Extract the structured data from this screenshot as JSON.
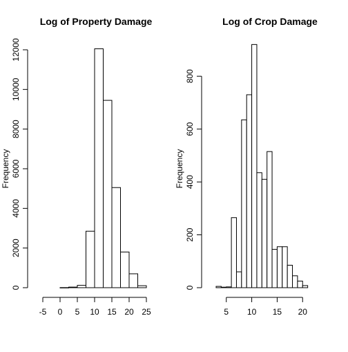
{
  "chart_data": [
    {
      "type": "bar",
      "title": "Log of Property Damage",
      "xlabel": "",
      "ylabel": "Frequency",
      "xlim": [
        -5,
        25
      ],
      "ylim": [
        0,
        12000
      ],
      "xticks": [
        "-5",
        "0",
        "5",
        "10",
        "15",
        "20",
        "25"
      ],
      "yticks": [
        "0",
        "2000",
        "4000",
        "6000",
        "8000",
        "10000",
        "12000"
      ],
      "bins": [
        {
          "x0": 0,
          "x1": 2.5,
          "count": 5
        },
        {
          "x0": 2.5,
          "x1": 5,
          "count": 30
        },
        {
          "x0": 5,
          "x1": 7.5,
          "count": 120
        },
        {
          "x0": 7.5,
          "x1": 10,
          "count": 2850
        },
        {
          "x0": 10,
          "x1": 12.5,
          "count": 12050
        },
        {
          "x0": 12.5,
          "x1": 15,
          "count": 9450
        },
        {
          "x0": 15,
          "x1": 17.5,
          "count": 5050
        },
        {
          "x0": 17.5,
          "x1": 20,
          "count": 1800
        },
        {
          "x0": 20,
          "x1": 22.5,
          "count": 700
        },
        {
          "x0": 22.5,
          "x1": 25,
          "count": 100
        }
      ]
    },
    {
      "type": "bar",
      "title": "Log of Crop Damage",
      "xlabel": "",
      "ylabel": "Frequency",
      "xlim": [
        3,
        22
      ],
      "ylim": [
        0,
        900
      ],
      "xticks": [
        "5",
        "10",
        "15",
        "20"
      ],
      "yticks": [
        "0",
        "200",
        "400",
        "600",
        "800"
      ],
      "bins": [
        {
          "x0": 3,
          "x1": 4,
          "count": 5
        },
        {
          "x0": 4,
          "x1": 5,
          "count": 2
        },
        {
          "x0": 5,
          "x1": 6,
          "count": 3
        },
        {
          "x0": 6,
          "x1": 7,
          "count": 265
        },
        {
          "x0": 7,
          "x1": 8,
          "count": 60
        },
        {
          "x0": 8,
          "x1": 9,
          "count": 635
        },
        {
          "x0": 9,
          "x1": 10,
          "count": 730
        },
        {
          "x0": 10,
          "x1": 11,
          "count": 920
        },
        {
          "x0": 11,
          "x1": 12,
          "count": 435
        },
        {
          "x0": 12,
          "x1": 13,
          "count": 410
        },
        {
          "x0": 13,
          "x1": 14,
          "count": 515
        },
        {
          "x0": 14,
          "x1": 15,
          "count": 145
        },
        {
          "x0": 15,
          "x1": 16,
          "count": 155
        },
        {
          "x0": 16,
          "x1": 17,
          "count": 155
        },
        {
          "x0": 17,
          "x1": 18,
          "count": 85
        },
        {
          "x0": 18,
          "x1": 19,
          "count": 45
        },
        {
          "x0": 19,
          "x1": 20,
          "count": 25
        },
        {
          "x0": 20,
          "x1": 21,
          "count": 8
        }
      ]
    }
  ]
}
